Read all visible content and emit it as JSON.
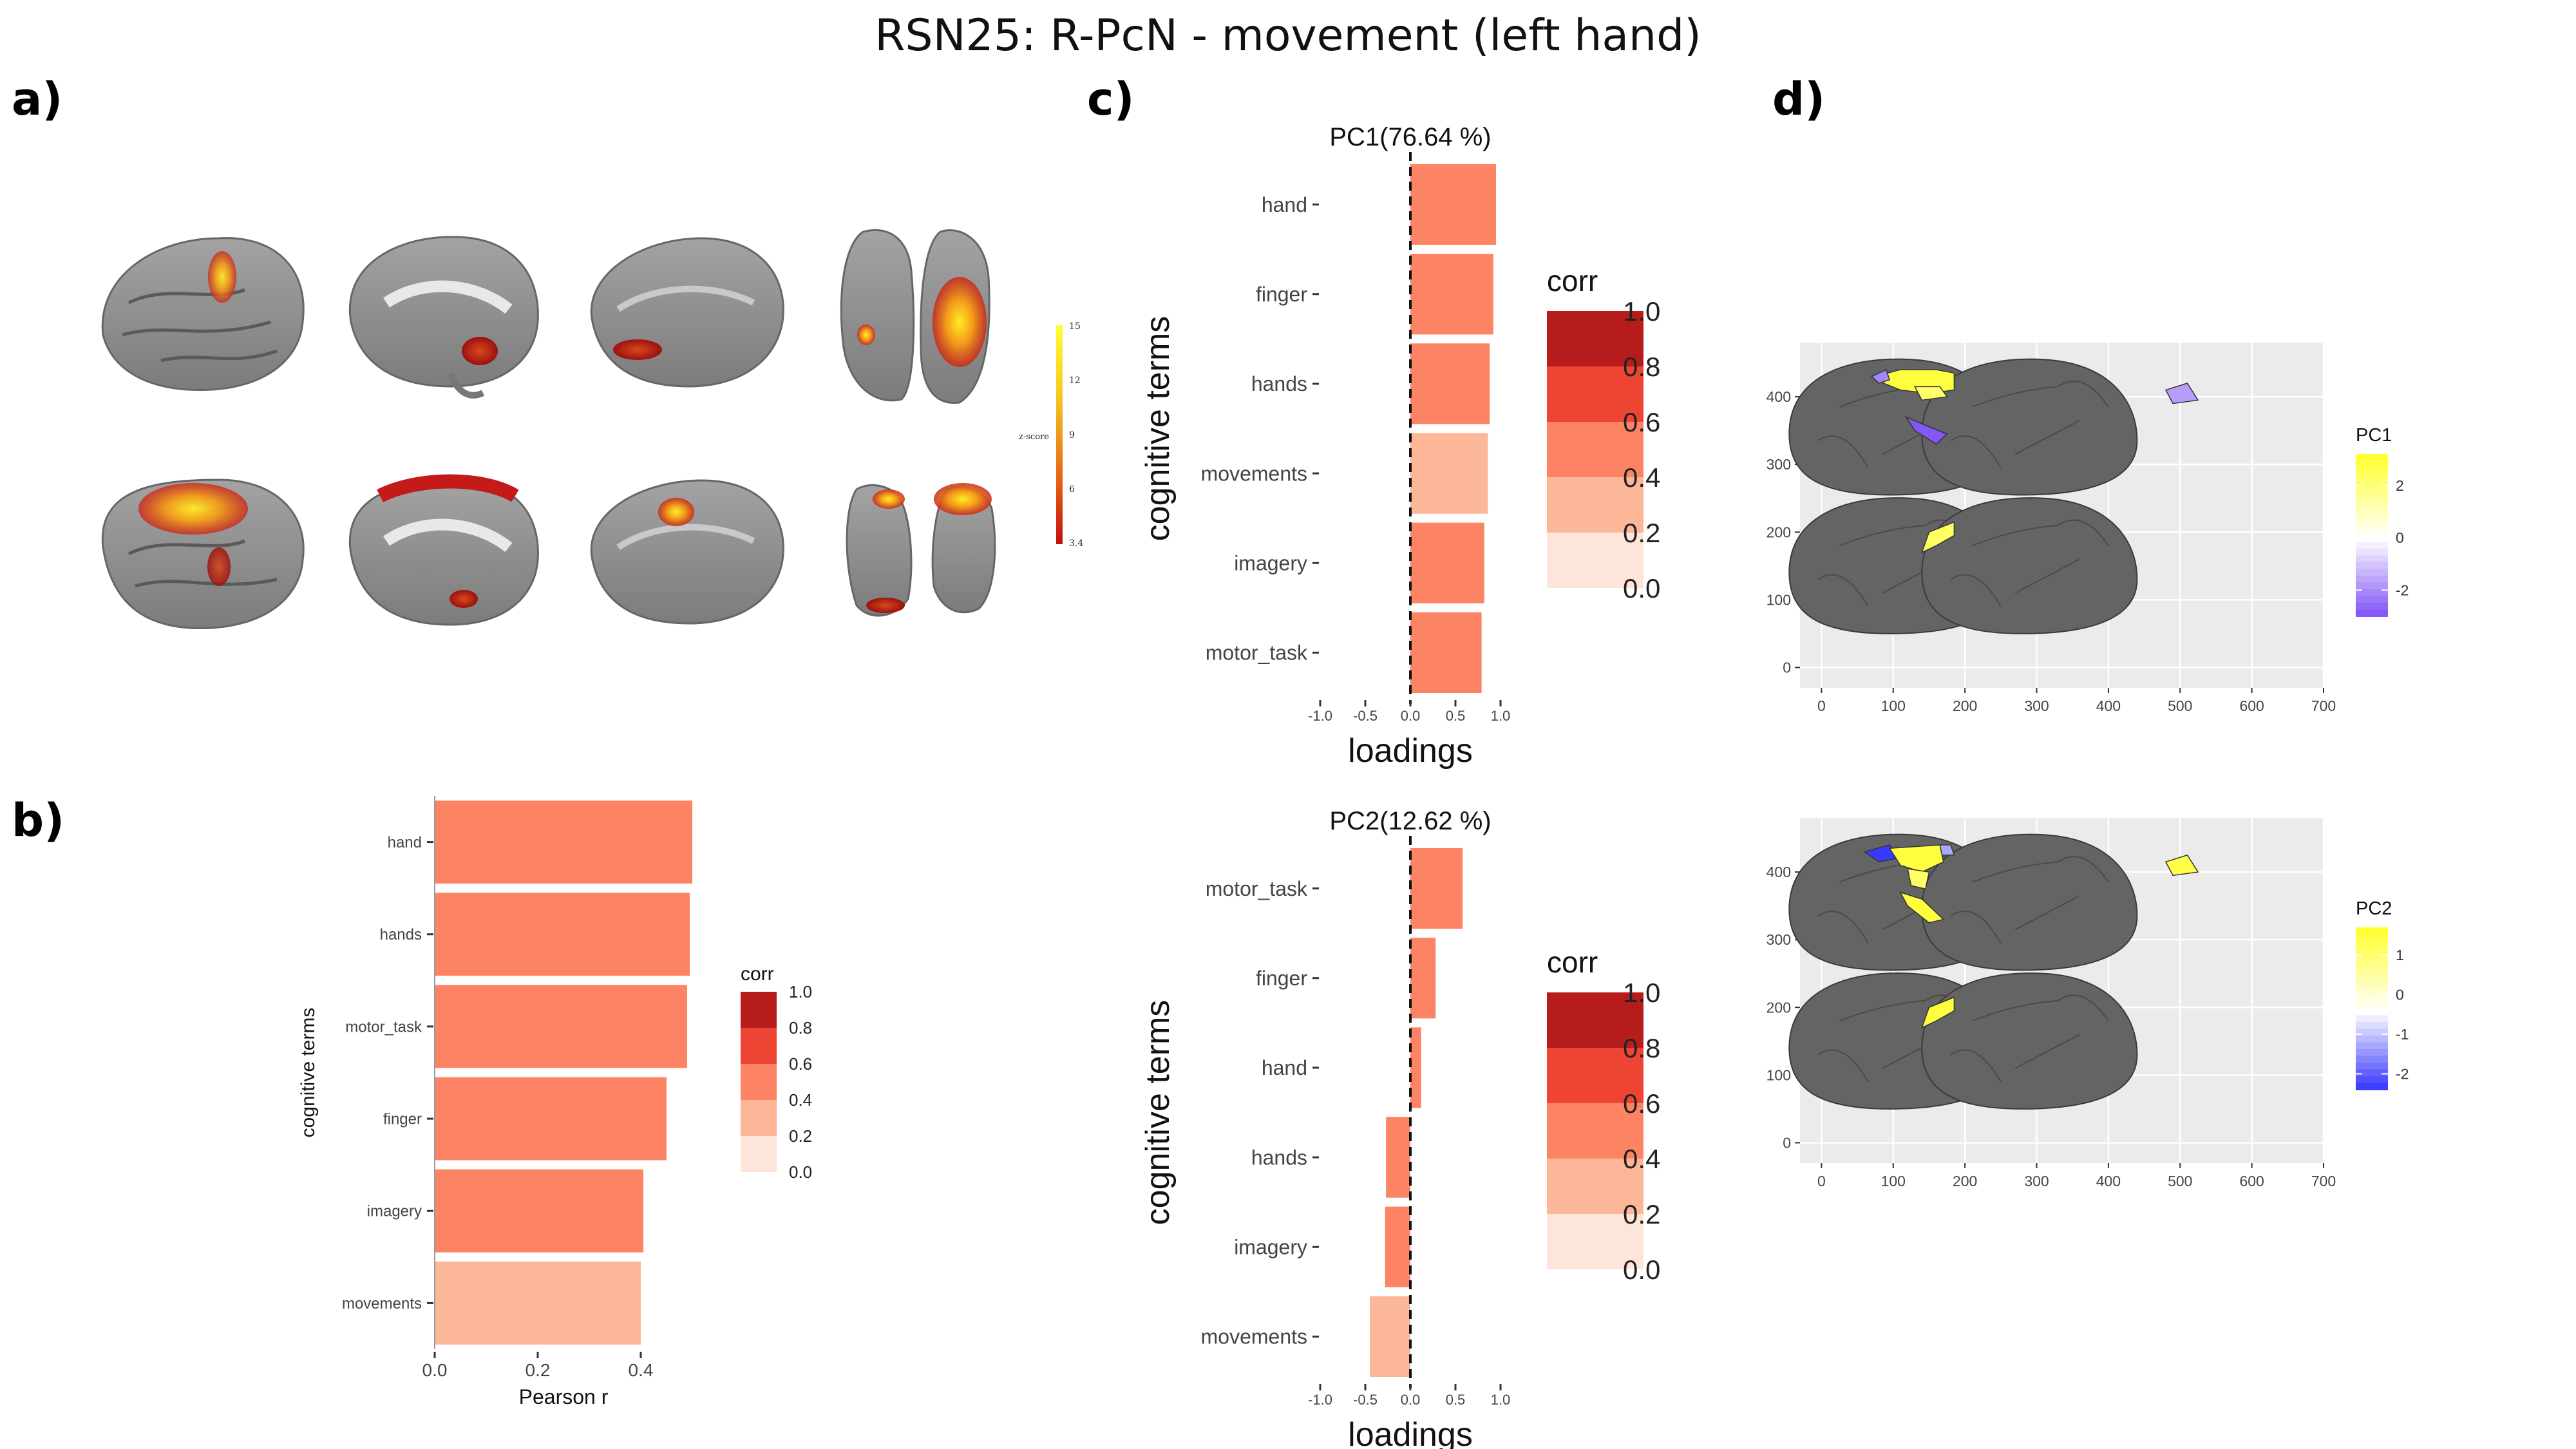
{
  "title": "RSN25: R-PcN - movement (left hand)",
  "panel_labels": [
    "a)",
    "b)",
    "c)",
    "d)"
  ],
  "brain_colorbar": {
    "label": "z-score",
    "ticks": [
      "15",
      "12",
      "9",
      "6",
      "3.4"
    ]
  },
  "corr_legend": {
    "title": "corr",
    "labels": [
      "1.0",
      "0.8",
      "0.6",
      "0.4",
      "0.2",
      "0.0"
    ],
    "colors": [
      "#B71C1C",
      "#EE4433",
      "#FC8464",
      "#FCB698",
      "#FEE5DA"
    ]
  },
  "chart_data": [
    {
      "id": "b",
      "type": "bar",
      "orientation": "horizontal",
      "xlabel": "Pearson r",
      "ylabel": "cognitive terms",
      "categories": [
        "hand",
        "hands",
        "motor_task",
        "finger",
        "imagery",
        "movements"
      ],
      "values": [
        0.5,
        0.495,
        0.49,
        0.45,
        0.405,
        0.4
      ],
      "colors": [
        "#FC8464",
        "#FC8464",
        "#FC8464",
        "#FC8464",
        "#FC8464",
        "#FCB698"
      ],
      "xlim": [
        0,
        0.5
      ],
      "xticks": [
        "0.0",
        "0.2",
        "0.4"
      ],
      "tick_values": [
        0,
        0.2,
        0.4
      ]
    },
    {
      "id": "c1",
      "type": "bar",
      "orientation": "horizontal",
      "title": "PC1(76.64 %)",
      "xlabel": "loadings",
      "ylabel": "cognitive terms",
      "categories": [
        "hand",
        "finger",
        "hands",
        "movements",
        "imagery",
        "motor_task"
      ],
      "values": [
        0.95,
        0.92,
        0.88,
        0.86,
        0.82,
        0.79
      ],
      "colors": [
        "#FC8464",
        "#FC8464",
        "#FC8464",
        "#FCB698",
        "#FC8464",
        "#FC8464"
      ],
      "xlim": [
        -1,
        1
      ],
      "xticks": [
        "-1.0",
        "-0.5",
        "0.0",
        "0.5",
        "1.0"
      ],
      "tick_values": [
        -1,
        -0.5,
        0,
        0.5,
        1
      ]
    },
    {
      "id": "c2",
      "type": "bar",
      "orientation": "horizontal",
      "title": "PC2(12.62 %)",
      "xlabel": "loadings",
      "ylabel": "cognitive terms",
      "categories": [
        "motor_task",
        "finger",
        "hand",
        "hands",
        "imagery",
        "movements"
      ],
      "values": [
        0.58,
        0.28,
        0.12,
        -0.27,
        -0.28,
        -0.45
      ],
      "colors": [
        "#FC8464",
        "#FC8464",
        "#FC8464",
        "#FC8464",
        "#FC8464",
        "#FCB698"
      ],
      "xlim": [
        -1,
        1
      ],
      "xticks": [
        "-1.0",
        "-0.5",
        "0.0",
        "0.5",
        "1.0"
      ],
      "tick_values": [
        -1,
        -0.5,
        0,
        0.5,
        1
      ]
    },
    {
      "id": "d1",
      "type": "heatmap",
      "legend_title": "PC1",
      "legend_ticks": [
        "2",
        "0",
        "-2"
      ],
      "legend_tick_values": [
        2,
        0,
        -2
      ],
      "color_range": [
        -3,
        3.2
      ],
      "colors": [
        "#7B4BF5",
        "#FFFFFF",
        "#FFFF33"
      ],
      "xticks": [
        "0",
        "100",
        "200",
        "300",
        "400",
        "500",
        "600",
        "700"
      ],
      "yticks": [
        "0",
        "100",
        "200",
        "300",
        "400"
      ],
      "xlim": [
        -30,
        700
      ],
      "ylim": [
        -30,
        480
      ]
    },
    {
      "id": "d2",
      "type": "heatmap",
      "legend_title": "PC2",
      "legend_ticks": [
        "1",
        "0",
        "-1",
        "-2"
      ],
      "legend_tick_values": [
        1,
        0,
        -1,
        -2
      ],
      "color_range": [
        -2.4,
        1.7
      ],
      "colors": [
        "#2E2EFF",
        "#FFFFFF",
        "#FFFF33"
      ],
      "xticks": [
        "0",
        "100",
        "200",
        "300",
        "400",
        "500",
        "600",
        "700"
      ],
      "yticks": [
        "0",
        "100",
        "200",
        "300",
        "400"
      ],
      "xlim": [
        -30,
        700
      ],
      "ylim": [
        -30,
        480
      ]
    }
  ]
}
